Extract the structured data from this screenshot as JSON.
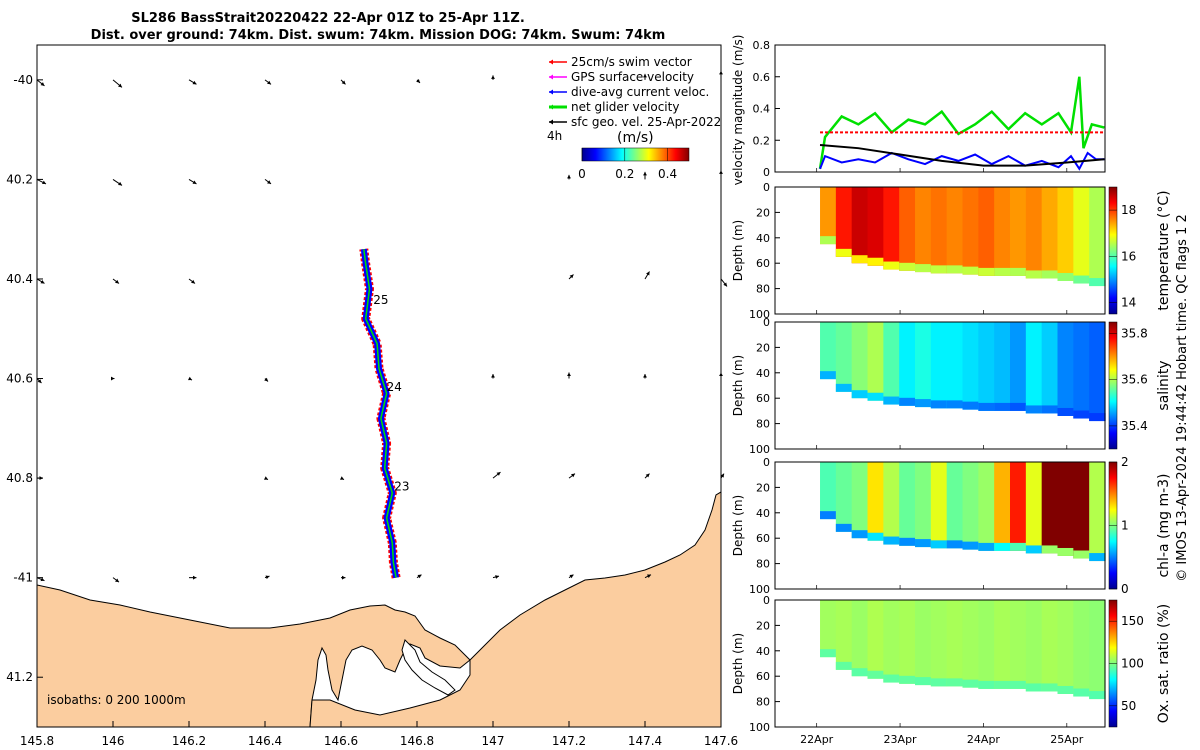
{
  "title": {
    "line1": "SL286 BassStrait20220422 22-Apr 01Z to 25-Apr 11Z.",
    "line2": "Dist. over ground: 74km. Dist. swum: 74km. Mission DOG: 74km. Swum: 74km"
  },
  "credit": "© IMOS 13-Apr-2024 19:44:42 Hobart time. QC flags 1  2",
  "colors": {
    "land": "#fbcd9f",
    "swim": "#ff0000",
    "gps": "#ff00ff",
    "dac": "#0000ff",
    "net": "#00e000",
    "geo": "#000000"
  },
  "chart_data": [
    {
      "type": "map",
      "name": "track-map",
      "xlim": [
        145.8,
        147.6
      ],
      "ylim": [
        -41.3,
        -39.93
      ],
      "x_ticks": [
        145.8,
        146,
        146.2,
        146.4,
        146.6,
        146.8,
        147,
        147.2,
        147.4,
        147.6
      ],
      "x_tick_labels": [
        "145.8",
        "146",
        "146.2",
        "146.4",
        "146.6",
        "146.8",
        "147",
        "147.2",
        "147.4",
        "147.6"
      ],
      "y_ticks": [
        -40,
        -40.2,
        -40.4,
        -40.6,
        -40.8,
        -41,
        -41.2
      ],
      "y_tick_labels": [
        "-40",
        "40.2",
        "40.4",
        "40.6",
        "40.8",
        "-41",
        "41.2"
      ],
      "legend": {
        "placement": "top-right",
        "entries": [
          {
            "label": "25cm/s swim vector",
            "color": "#ff0000"
          },
          {
            "label": "GPS surface velocity",
            "color": "#ff00ff"
          },
          {
            "label": "dive-avg current veloc.",
            "color": "#0000ff"
          },
          {
            "label": "net glider velocity",
            "color": "#00e000"
          },
          {
            "label": "sfc geo. vel. 25-Apr-2022",
            "color": "#000000"
          }
        ],
        "interval_label": "4h"
      },
      "colorbar": {
        "label": "(m/s)",
        "range": [
          0,
          0.5
        ],
        "ticks": [
          0,
          0.2,
          0.4
        ],
        "tick_labels": [
          "0",
          "0.2",
          "0.4"
        ]
      },
      "track": [
        {
          "lon": 146.745,
          "lat": -41.0
        },
        {
          "lon": 146.738,
          "lat": -40.97
        },
        {
          "lon": 146.735,
          "lat": -40.93
        },
        {
          "lon": 146.72,
          "lat": -40.88
        },
        {
          "lon": 146.735,
          "lat": -40.83
        },
        {
          "lon": 146.715,
          "lat": -40.78
        },
        {
          "lon": 146.72,
          "lat": -40.73
        },
        {
          "lon": 146.705,
          "lat": -40.68
        },
        {
          "lon": 146.72,
          "lat": -40.63
        },
        {
          "lon": 146.7,
          "lat": -40.58
        },
        {
          "lon": 146.695,
          "lat": -40.53
        },
        {
          "lon": 146.665,
          "lat": -40.48
        },
        {
          "lon": 146.675,
          "lat": -40.42
        },
        {
          "lon": 146.665,
          "lat": -40.37
        },
        {
          "lon": 146.66,
          "lat": -40.34
        }
      ],
      "day_labels": [
        {
          "text": "25",
          "lon": 146.685,
          "lat": -40.45
        },
        {
          "text": "24",
          "lon": 146.72,
          "lat": -40.625
        },
        {
          "text": "23",
          "lon": 146.74,
          "lat": -40.825
        }
      ],
      "geo_vectors": [
        {
          "lon": 145.8,
          "lat": -40,
          "u": 0.05,
          "v": -0.04
        },
        {
          "lon": 146,
          "lat": -40,
          "u": 0.06,
          "v": -0.05
        },
        {
          "lon": 146.2,
          "lat": -40,
          "u": 0.05,
          "v": -0.03
        },
        {
          "lon": 146.4,
          "lat": -40,
          "u": 0.04,
          "v": -0.03
        },
        {
          "lon": 146.6,
          "lat": -40,
          "u": 0.03,
          "v": -0.03
        },
        {
          "lon": 146.8,
          "lat": -40,
          "u": 0.02,
          "v": -0.02
        },
        {
          "lon": 147,
          "lat": -40,
          "u": 0.0,
          "v": 0.03
        },
        {
          "lon": 147.4,
          "lat": -40,
          "u": 0.0,
          "v": 0.04
        },
        {
          "lon": 147.6,
          "lat": -40,
          "u": 0.0,
          "v": 0.06
        },
        {
          "lon": 145.8,
          "lat": -40.2,
          "u": 0.06,
          "v": -0.03
        },
        {
          "lon": 146,
          "lat": -40.2,
          "u": 0.06,
          "v": -0.04
        },
        {
          "lon": 146.2,
          "lat": -40.2,
          "u": 0.05,
          "v": -0.03
        },
        {
          "lon": 146.4,
          "lat": -40.2,
          "u": 0.04,
          "v": -0.03
        },
        {
          "lon": 147.2,
          "lat": -40.2,
          "u": 0.0,
          "v": 0.03
        },
        {
          "lon": 147.4,
          "lat": -40.2,
          "u": 0.0,
          "v": 0.05
        },
        {
          "lon": 147.6,
          "lat": -40.2,
          "u": 0.0,
          "v": 0.06
        },
        {
          "lon": 145.8,
          "lat": -40.4,
          "u": 0.05,
          "v": -0.03
        },
        {
          "lon": 146,
          "lat": -40.4,
          "u": 0.04,
          "v": -0.03
        },
        {
          "lon": 146.2,
          "lat": -40.4,
          "u": 0.04,
          "v": -0.03
        },
        {
          "lon": 147.2,
          "lat": -40.4,
          "u": 0.03,
          "v": 0.03
        },
        {
          "lon": 147.4,
          "lat": -40.4,
          "u": 0.03,
          "v": 0.05
        },
        {
          "lon": 147.6,
          "lat": -40.4,
          "u": 0.04,
          "v": -0.05
        },
        {
          "lon": 145.8,
          "lat": -40.6,
          "u": 0.03,
          "v": -0.03
        },
        {
          "lon": 146,
          "lat": -40.6,
          "u": 0.01,
          "v": 0.0
        },
        {
          "lon": 146.2,
          "lat": -40.6,
          "u": 0.02,
          "v": -0.01
        },
        {
          "lon": 146.4,
          "lat": -40.6,
          "u": 0.02,
          "v": -0.02
        },
        {
          "lon": 147,
          "lat": -40.6,
          "u": 0.0,
          "v": 0.03
        },
        {
          "lon": 147.2,
          "lat": -40.6,
          "u": 0.0,
          "v": 0.04
        },
        {
          "lon": 147.4,
          "lat": -40.6,
          "u": 0.0,
          "v": 0.03
        },
        {
          "lon": 147.6,
          "lat": -40.6,
          "u": 0.0,
          "v": 0.04
        },
        {
          "lon": 145.8,
          "lat": -40.8,
          "u": 0.04,
          "v": 0.0
        },
        {
          "lon": 146.4,
          "lat": -40.8,
          "u": 0.02,
          "v": -0.01
        },
        {
          "lon": 146.6,
          "lat": -40.8,
          "u": 0.02,
          "v": -0.01
        },
        {
          "lon": 147,
          "lat": -40.8,
          "u": 0.05,
          "v": 0.04
        },
        {
          "lon": 147.2,
          "lat": -40.8,
          "u": 0.04,
          "v": 0.03
        },
        {
          "lon": 147.4,
          "lat": -40.8,
          "u": 0.03,
          "v": 0.03
        },
        {
          "lon": 147.6,
          "lat": -40.8,
          "u": 0.02,
          "v": 0.03
        },
        {
          "lon": 145.8,
          "lat": -41,
          "u": 0.05,
          "v": -0.02
        },
        {
          "lon": 146,
          "lat": -41,
          "u": 0.04,
          "v": -0.03
        },
        {
          "lon": 146.2,
          "lat": -41,
          "u": 0.05,
          "v": 0.0
        },
        {
          "lon": 146.4,
          "lat": -41,
          "u": 0.03,
          "v": 0.01
        },
        {
          "lon": 146.6,
          "lat": -41,
          "u": 0.03,
          "v": 0.0
        },
        {
          "lon": 146.8,
          "lat": -41,
          "u": 0.03,
          "v": 0.02
        },
        {
          "lon": 147,
          "lat": -41,
          "u": 0.04,
          "v": 0.01
        },
        {
          "lon": 147.2,
          "lat": -41,
          "u": 0.03,
          "v": 0.02
        },
        {
          "lon": 147.4,
          "lat": -41,
          "u": 0.04,
          "v": 0.02
        }
      ],
      "isobaths_label": "isobaths: 0   200  1000m"
    },
    {
      "type": "line",
      "name": "velocity",
      "xlim": [
        "2022-04-21T12:00",
        "2022-04-25T11:00"
      ],
      "ylim": [
        0,
        0.8
      ],
      "yticks": [
        0,
        0.2,
        0.4,
        0.6,
        0.8
      ],
      "ytick_labels": [
        "0",
        "0.2",
        "0.4",
        "0.6",
        "0.8"
      ],
      "ylabel": "velocity magnitude (m/s)",
      "series": [
        {
          "color": "#00e000",
          "t": [
            22.04,
            22.1,
            22.3,
            22.5,
            22.7,
            22.9,
            23.1,
            23.3,
            23.5,
            23.7,
            23.9,
            24.1,
            24.3,
            24.5,
            24.7,
            24.9,
            25.05,
            25.15,
            25.2,
            25.3,
            25.45
          ],
          "y": [
            0.02,
            0.22,
            0.35,
            0.3,
            0.37,
            0.25,
            0.33,
            0.3,
            0.38,
            0.24,
            0.3,
            0.38,
            0.27,
            0.37,
            0.3,
            0.37,
            0.25,
            0.6,
            0.15,
            0.3,
            0.28
          ]
        },
        {
          "color": "#0000ff",
          "t": [
            22.04,
            22.1,
            22.3,
            22.5,
            22.7,
            22.9,
            23.1,
            23.3,
            23.5,
            23.7,
            23.9,
            24.1,
            24.3,
            24.5,
            24.7,
            24.9,
            25.05,
            25.15,
            25.25,
            25.35,
            25.45
          ],
          "y": [
            0.02,
            0.1,
            0.06,
            0.08,
            0.06,
            0.12,
            0.08,
            0.05,
            0.1,
            0.07,
            0.11,
            0.05,
            0.1,
            0.04,
            0.07,
            0.03,
            0.1,
            0.02,
            0.12,
            0.08,
            0.08
          ]
        },
        {
          "color": "#000000",
          "t": [
            22.04,
            22.5,
            23.0,
            23.5,
            24.0,
            24.5,
            25.0,
            25.45
          ],
          "y": [
            0.17,
            0.15,
            0.11,
            0.07,
            0.04,
            0.04,
            0.06,
            0.08
          ]
        },
        {
          "color": "#ff0000",
          "t": [
            22.04,
            25.45
          ],
          "y": [
            0.25,
            0.25
          ]
        }
      ],
      "xtick_labels": [
        "22Apr",
        "23Apr",
        "24Apr",
        "25Apr"
      ]
    },
    {
      "type": "heatmap",
      "name": "temperature",
      "ylabel": "Depth (m)",
      "cblabel": "temperature (°C)",
      "ylim": [
        100,
        0
      ],
      "yticks": [
        0,
        20,
        40,
        60,
        80,
        100
      ],
      "cbticks": [
        14,
        16,
        18
      ],
      "cbrange": [
        13.5,
        19
      ],
      "col_values": [
        17.5,
        18.2,
        18.6,
        18.5,
        18.2,
        17.8,
        17.6,
        17.7,
        17.6,
        17.7,
        17.8,
        17.6,
        17.5,
        17.6,
        17.4,
        17.2,
        16.8,
        16.5
      ],
      "bottom_value": 15.5
    },
    {
      "type": "heatmap",
      "name": "salinity",
      "ylabel": "Depth (m)",
      "cblabel": "salinity",
      "ylim": [
        100,
        0
      ],
      "yticks": [
        0,
        20,
        40,
        60,
        80,
        100
      ],
      "cbticks": [
        35.4,
        35.6,
        35.8
      ],
      "cbrange": [
        35.3,
        35.85
      ],
      "col_values": [
        35.55,
        35.56,
        35.58,
        35.6,
        35.55,
        35.5,
        35.52,
        35.5,
        35.5,
        35.49,
        35.48,
        35.47,
        35.45,
        35.5,
        35.48,
        35.44,
        35.43,
        35.42
      ],
      "bottom_value": 35.38
    },
    {
      "type": "heatmap",
      "name": "chl-a",
      "ylabel": "Depth (m)",
      "cblabel": "chl-a (mg m-3)",
      "ylim": [
        100,
        0
      ],
      "yticks": [
        0,
        20,
        40,
        60,
        80,
        100
      ],
      "cbticks": [
        0,
        1,
        2
      ],
      "cbrange": [
        0,
        2
      ],
      "col_values": [
        0.9,
        0.95,
        1.0,
        1.3,
        1.1,
        0.95,
        1.0,
        1.2,
        0.95,
        1.0,
        1.05,
        1.4,
        1.7,
        1.2,
        2.0,
        2.0,
        2.0,
        1.1
      ],
      "bottom_value": 0.1
    },
    {
      "type": "heatmap",
      "name": "oxygen",
      "ylabel": "Depth (m)",
      "cblabel": "Ox. sat. ratio (%)",
      "ylim": [
        100,
        0
      ],
      "yticks": [
        0,
        20,
        40,
        60,
        80,
        100
      ],
      "cbticks": [
        50,
        100,
        150
      ],
      "cbrange": [
        25,
        175
      ],
      "col_values": [
        105,
        106,
        104,
        107,
        105,
        106,
        104,
        105,
        106,
        105,
        104,
        106,
        105,
        104,
        106,
        105,
        103,
        102
      ],
      "bottom_value": 85
    }
  ]
}
